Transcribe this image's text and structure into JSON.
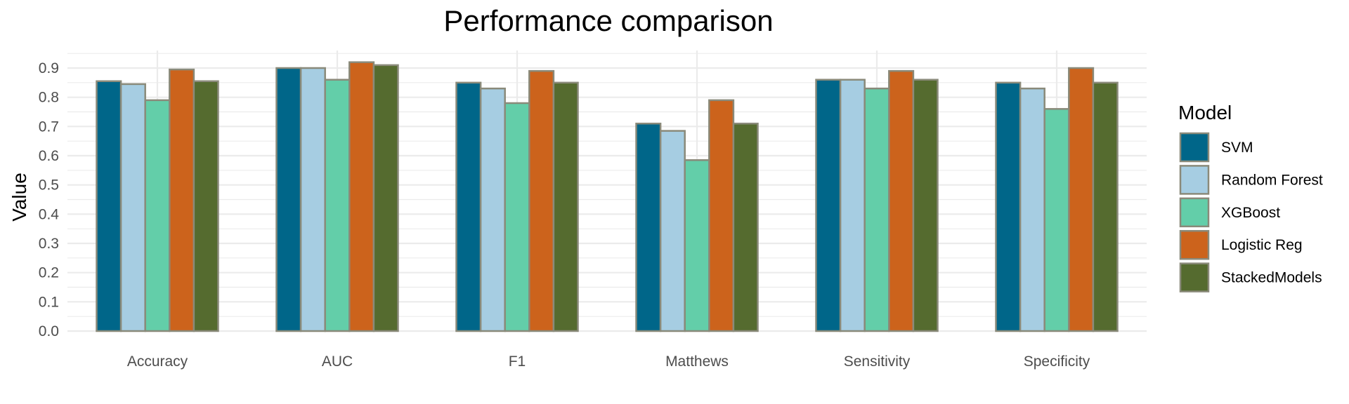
{
  "chart_data": {
    "type": "bar",
    "title": "Performance comparison",
    "xlabel": "",
    "ylabel": "Value",
    "ylim": [
      0,
      0.96
    ],
    "yticks": [
      0.0,
      0.1,
      0.2,
      0.3,
      0.4,
      0.5,
      0.6,
      0.7,
      0.8,
      0.9
    ],
    "ytick_labels": [
      "0.0",
      "0.1",
      "0.2",
      "0.3",
      "0.4",
      "0.5",
      "0.6",
      "0.7",
      "0.8",
      "0.9"
    ],
    "categories": [
      "Accuracy",
      "AUC",
      "F1",
      "Matthews",
      "Sensitivity",
      "Specificity"
    ],
    "legend_title": "Model",
    "legend_position": "right",
    "grid": true,
    "series": [
      {
        "name": "SVM",
        "color": "#006689",
        "values": [
          0.855,
          0.9,
          0.85,
          0.71,
          0.86,
          0.85
        ]
      },
      {
        "name": "Random Forest",
        "color": "#a6cde2",
        "values": [
          0.845,
          0.9,
          0.83,
          0.685,
          0.86,
          0.83
        ]
      },
      {
        "name": "XGBoost",
        "color": "#63cea9",
        "values": [
          0.79,
          0.86,
          0.78,
          0.585,
          0.83,
          0.76
        ]
      },
      {
        "name": "Logistic Reg",
        "color": "#cc631c",
        "values": [
          0.895,
          0.92,
          0.89,
          0.79,
          0.89,
          0.9
        ]
      },
      {
        "name": "StackedModels",
        "color": "#556b2f",
        "values": [
          0.855,
          0.91,
          0.85,
          0.71,
          0.86,
          0.85
        ]
      }
    ],
    "bar_border_color": "#8a8a7a",
    "grid_color": "#ebebeb"
  }
}
